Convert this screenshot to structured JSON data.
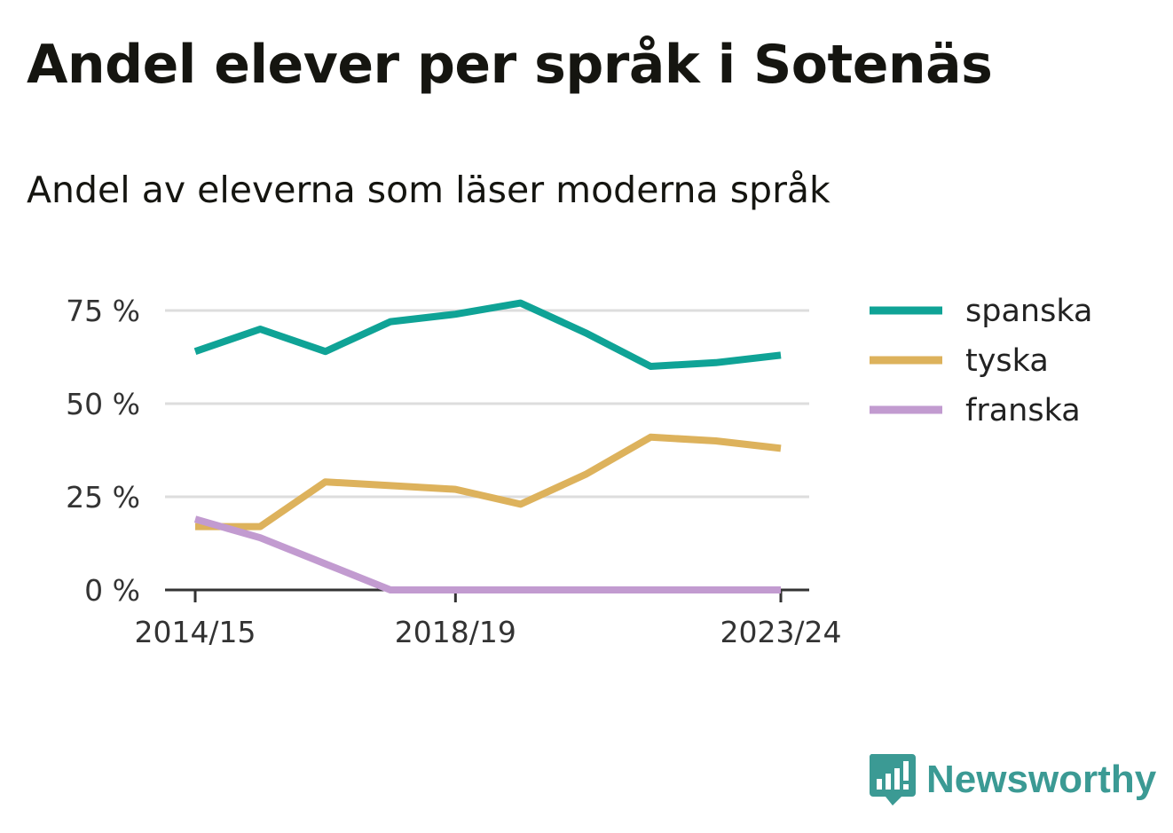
{
  "header": {
    "title": "Andel elever per språk i Sotenäs",
    "subtitle": "Andel av eleverna som läser moderna språk"
  },
  "brand": {
    "name": "Newsworthy",
    "icon": "newsworthy-logo-icon",
    "color": "#3b9a94"
  },
  "chart_data": {
    "type": "line",
    "title": "Andel elever per språk i Sotenäs",
    "subtitle": "Andel av eleverna som läser moderna språk",
    "xlabel": "",
    "ylabel": "",
    "x": [
      "2014/15",
      "2015/16",
      "2016/17",
      "2017/18",
      "2018/19",
      "2019/20",
      "2020/21",
      "2021/22",
      "2022/23",
      "2023/24"
    ],
    "x_tick_labels": [
      "2014/15",
      "2018/19",
      "2023/24"
    ],
    "y_ticks": [
      0,
      25,
      50,
      75
    ],
    "y_tick_labels": [
      "0 %",
      "25 %",
      "50 %",
      "75 %"
    ],
    "ylim": [
      0,
      75
    ],
    "grid": true,
    "legend": "right",
    "series": [
      {
        "name": "spanska",
        "color": "#0fa396",
        "values": [
          64,
          70,
          64,
          72,
          74,
          77,
          69,
          60,
          61,
          63
        ]
      },
      {
        "name": "tyska",
        "color": "#ddb25c",
        "values": [
          17,
          17,
          29,
          28,
          27,
          23,
          31,
          41,
          40,
          38
        ]
      },
      {
        "name": "franska",
        "color": "#c29bd0",
        "values": [
          19,
          14,
          7,
          0,
          0,
          0,
          0,
          0,
          0,
          0
        ]
      }
    ]
  }
}
